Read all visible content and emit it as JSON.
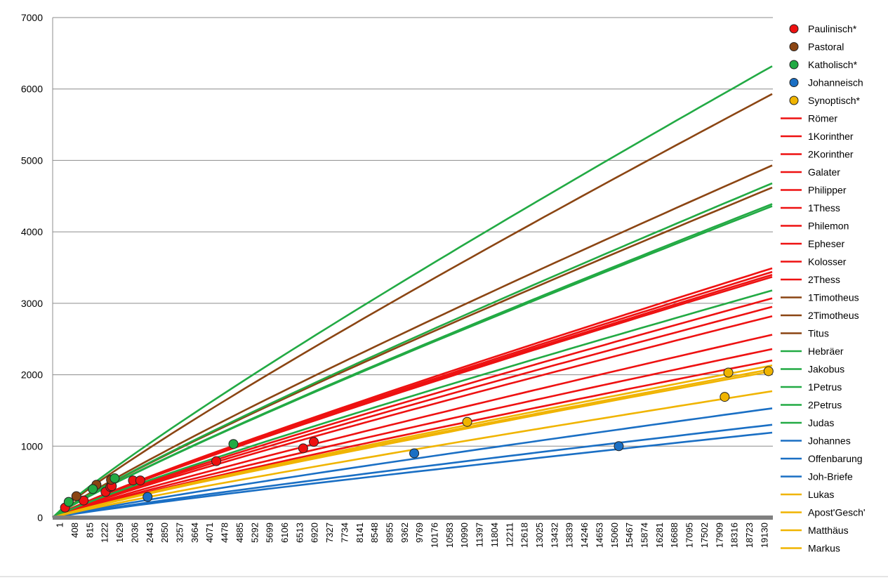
{
  "chart_data": {
    "type": "line",
    "title": "",
    "xlabel": "",
    "ylabel": "",
    "xlim": [
      1,
      19700
    ],
    "ylim": [
      0,
      7000
    ],
    "y_ticks": [
      0,
      1000,
      2000,
      3000,
      4000,
      5000,
      6000,
      7000
    ],
    "x_ticks": [
      "1",
      "408",
      "815",
      "1222",
      "1629",
      "2036",
      "2443",
      "2850",
      "3257",
      "3664",
      "4071",
      "4478",
      "4885",
      "5292",
      "5699",
      "6106",
      "6513",
      "6920",
      "7327",
      "7734",
      "8141",
      "8548",
      "8955",
      "9362",
      "9769",
      "10176",
      "10583",
      "10990",
      "11397",
      "11804",
      "12211",
      "12618",
      "13025",
      "13432",
      "13839",
      "14246",
      "14653",
      "15060",
      "15467",
      "15874",
      "16281",
      "16688",
      "17095",
      "17502",
      "17909",
      "18316",
      "18723",
      "19130"
    ],
    "grid": true,
    "legend_position": "right",
    "point_series": [
      {
        "name": "Paulinisch*",
        "color": "#ee1111",
        "points": [
          [
            340,
            140
          ],
          [
            850,
            240
          ],
          [
            1450,
            360
          ],
          [
            1580,
            430
          ],
          [
            1620,
            440
          ],
          [
            2200,
            520
          ],
          [
            2400,
            520
          ],
          [
            4480,
            790
          ],
          [
            6860,
            970
          ],
          [
            7150,
            1060
          ]
        ]
      },
      {
        "name": "Pastoral",
        "color": "#8b4513",
        "points": [
          [
            650,
            300
          ],
          [
            1200,
            460
          ],
          [
            1600,
            530
          ]
        ]
      },
      {
        "name": "Katholisch*",
        "color": "#22aa44",
        "points": [
          [
            440,
            220
          ],
          [
            1100,
            400
          ],
          [
            1700,
            550
          ],
          [
            4950,
            1030
          ]
        ]
      },
      {
        "name": "Johanneisch",
        "color": "#1a6fc4",
        "points": [
          [
            2600,
            290
          ],
          [
            9900,
            900
          ],
          [
            15500,
            1000
          ]
        ]
      },
      {
        "name": "Synoptisch*",
        "color": "#f0b400",
        "points": [
          [
            11350,
            1340
          ],
          [
            18400,
            1690
          ],
          [
            18500,
            2030
          ],
          [
            19600,
            2050
          ]
        ]
      }
    ],
    "line_series": [
      {
        "name": "Römer",
        "color": "#ee1111",
        "end_value": 3490
      },
      {
        "name": "1Korinther",
        "color": "#ee1111",
        "end_value": 3440
      },
      {
        "name": "2Korinther",
        "color": "#ee1111",
        "end_value": 3370
      },
      {
        "name": "Galater",
        "color": "#ee1111",
        "end_value": 3070
      },
      {
        "name": "Philipper",
        "color": "#ee1111",
        "end_value": 2950
      },
      {
        "name": "1Thess",
        "color": "#ee1111",
        "end_value": 2820
      },
      {
        "name": "Philemon",
        "color": "#ee1111",
        "end_value": 2560
      },
      {
        "name": "Epheser",
        "color": "#ee1111",
        "end_value": 2360
      },
      {
        "name": "Kolosser",
        "color": "#ee1111",
        "end_value": 2200
      },
      {
        "name": "2Thess",
        "color": "#ee1111",
        "end_value": 3400
      },
      {
        "name": "1Timotheus",
        "color": "#8b4513",
        "end_value": 5930
      },
      {
        "name": "2Timotheus",
        "color": "#8b4513",
        "end_value": 4930
      },
      {
        "name": "Titus",
        "color": "#8b4513",
        "end_value": 4620
      },
      {
        "name": "Hebräer",
        "color": "#22aa44",
        "end_value": 3180
      },
      {
        "name": "Jakobus",
        "color": "#22aa44",
        "end_value": 4680
      },
      {
        "name": "1Petrus",
        "color": "#22aa44",
        "end_value": 6320
      },
      {
        "name": "2Petrus",
        "color": "#22aa44",
        "end_value": 4390
      },
      {
        "name": "Judas",
        "color": "#22aa44",
        "end_value": 4360
      },
      {
        "name": "Johannes",
        "color": "#1a6fc4",
        "end_value": 1190
      },
      {
        "name": "Offenbarung",
        "color": "#1a6fc4",
        "end_value": 1530
      },
      {
        "name": "Joh-Briefe",
        "color": "#1a6fc4",
        "end_value": 1300
      },
      {
        "name": "Lukas",
        "color": "#f0b400",
        "end_value": 2130
      },
      {
        "name": "Apost'Gesch'",
        "color": "#f0b400",
        "end_value": 2080
      },
      {
        "name": "Matthäus",
        "color": "#f0b400",
        "end_value": 2050
      },
      {
        "name": "Markus",
        "color": "#f0b400",
        "end_value": 1770
      }
    ]
  }
}
